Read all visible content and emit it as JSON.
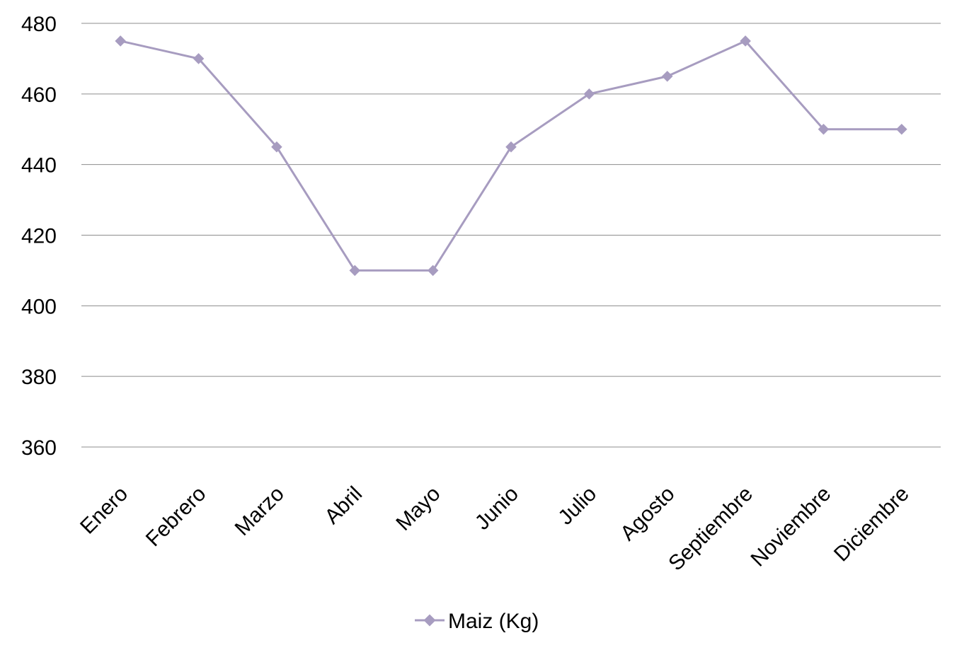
{
  "chart_data": {
    "type": "line",
    "title": "",
    "xlabel": "",
    "ylabel": "",
    "categories": [
      "Enero",
      "Febrero",
      "Marzo",
      "Abril",
      "Mayo",
      "Junio",
      "Julio",
      "Agosto",
      "Septiembre",
      "Noviembre",
      "Diciembre"
    ],
    "series": [
      {
        "name": "Maiz (Kg)",
        "values": [
          475,
          470,
          445,
          410,
          410,
          445,
          460,
          465,
          475,
          450,
          450
        ],
        "color": "#a79cc0",
        "marker": "diamond"
      }
    ],
    "ylim": [
      360,
      480
    ],
    "yticks": [
      480,
      460,
      440,
      420,
      400,
      380,
      360
    ],
    "grid": true,
    "legend_position": "bottom"
  }
}
